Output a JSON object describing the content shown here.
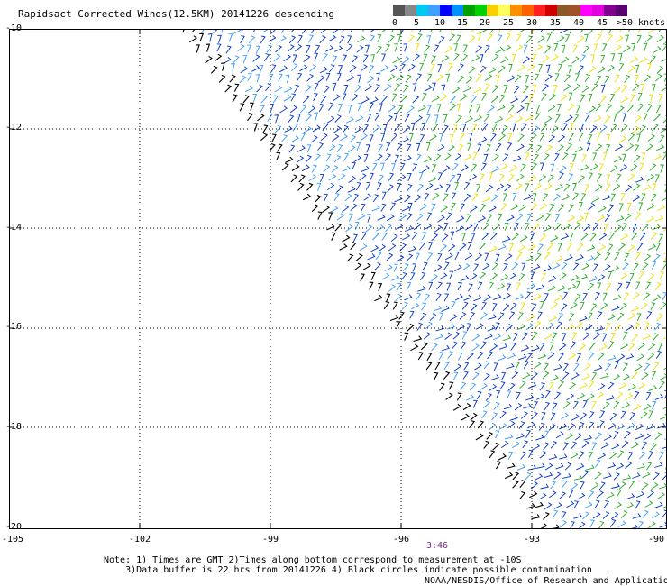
{
  "title": "Rapidsact Corrected Winds(12.5KM) 20141226 descending",
  "legend": {
    "colors": [
      "#555555",
      "#888888",
      "#00c8f0",
      "#3fa0ff",
      "#0000ff",
      "#0090ff",
      "#00a000",
      "#00d000",
      "#f8d000",
      "#ffff60",
      "#ff9000",
      "#ff6000",
      "#ff2020",
      "#d00000",
      "#8b5a2b",
      "#a0522d",
      "#ff00ff",
      "#e000e0",
      "#800090",
      "#5a0070"
    ],
    "labels": [
      "0",
      "5",
      "10",
      "15",
      "20",
      "25",
      "30",
      "35",
      "40",
      "45",
      ">50 knots"
    ]
  },
  "axes": {
    "y_labels": [
      "-10",
      "-12",
      "-14",
      "-16",
      "-18",
      "-20"
    ],
    "x_labels": [
      "-105",
      "-102",
      "-99",
      "-96",
      "-93",
      "-90"
    ]
  },
  "time_label": "3:46",
  "notes": {
    "line1": "Note: 1) Times are GMT 2)Times along bottom correspond to measurement at -10S",
    "line2": "3)Data buffer is 22 hrs from 20141226 4) Black circles indicate possible contamination"
  },
  "credit": "NOAA/NESDIS/Office of Research and Applications",
  "colors": {
    "frame": "#000000",
    "grid": "#000000",
    "wind_blue": "#0033cc",
    "wind_lightblue": "#3399ff",
    "wind_green": "#22aa22",
    "wind_yellow": "#e8e000",
    "wind_black": "#000000"
  }
}
